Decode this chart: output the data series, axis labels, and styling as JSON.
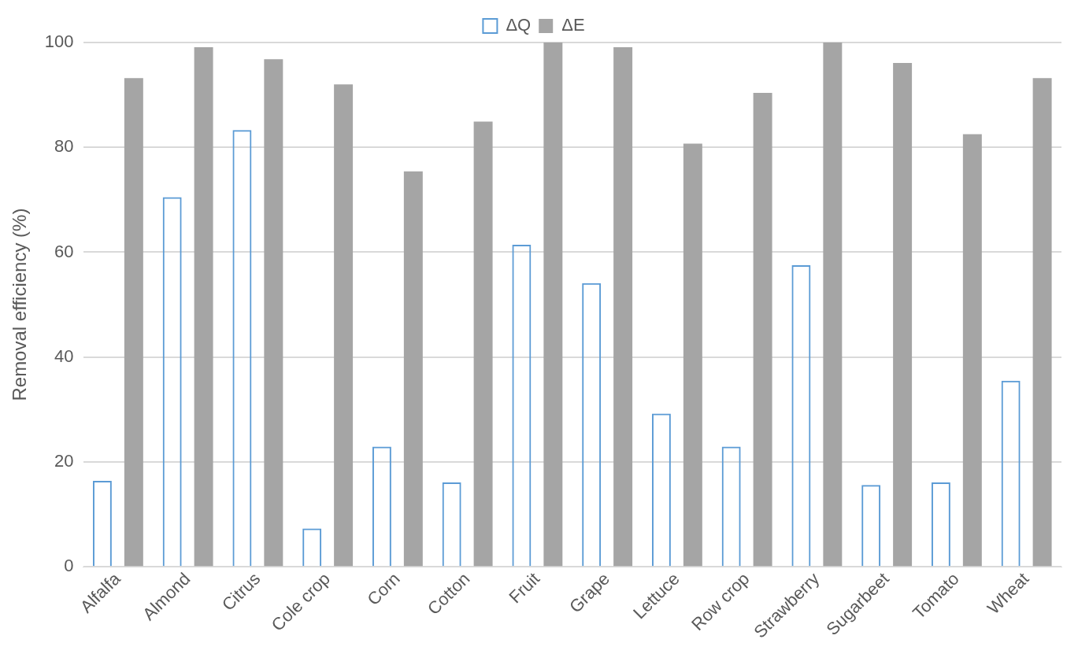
{
  "chart_data": {
    "type": "bar",
    "ylabel": "Removal efficiency (%)",
    "categories": [
      "Alfalfa",
      "Almond",
      "Citrus",
      "Cole crop",
      "Corn",
      "Cotton",
      "Fruit",
      "Grape",
      "Lettuce",
      "Row crop",
      "Strawberry",
      "Sugarbeet",
      "Tomato",
      "Wheat"
    ],
    "series": [
      {
        "name": "ΔQ",
        "color": "#5b9bd5",
        "values": [
          16.4,
          70.5,
          83.3,
          7.3,
          22.9,
          16.1,
          61.4,
          54.1,
          29.2,
          22.9,
          57.5,
          15.6,
          16.1,
          35.5
        ]
      },
      {
        "name": "ΔE",
        "color": "#a5a5a5",
        "values": [
          93.2,
          99.1,
          96.8,
          92.0,
          75.4,
          84.9,
          100,
          99.1,
          80.7,
          90.4,
          100,
          96.1,
          82.5,
          93.2
        ]
      }
    ],
    "ylim": [
      0,
      100
    ],
    "yticks": [
      0,
      20,
      40,
      60,
      80,
      100
    ],
    "grid": "y",
    "legend": "top"
  }
}
